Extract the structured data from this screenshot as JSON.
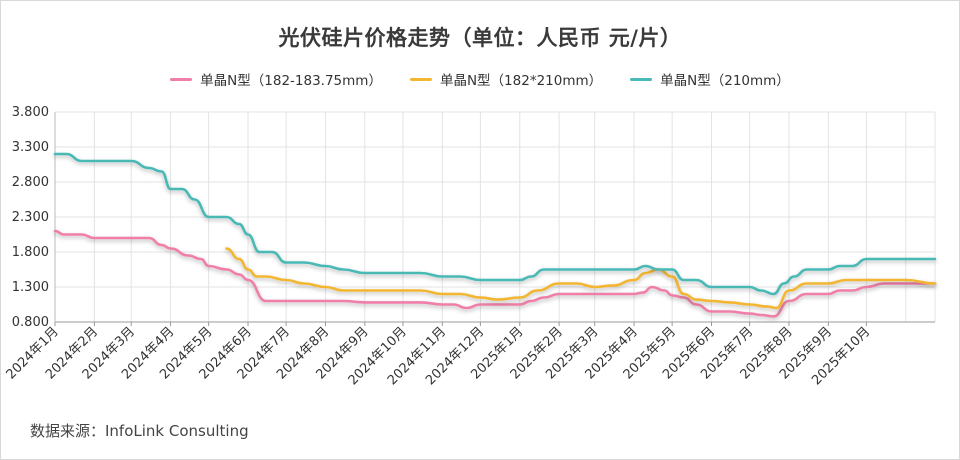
{
  "chart_data": {
    "type": "line",
    "title": "光伏硅片价格走势（单位：人民币 元/片）",
    "source": "数据来源：InfoLink Consulting",
    "ylim": [
      0.8,
      3.8
    ],
    "yticks": [
      "0.800",
      "1.300",
      "1.800",
      "2.300",
      "2.800",
      "3.300",
      "3.800"
    ],
    "ytick_values": [
      0.8,
      1.3,
      1.8,
      2.3,
      2.8,
      3.3,
      3.8
    ],
    "x_start": "2024-01-01",
    "x_end": "2025-11-24",
    "month_ticks": [
      "2024年1月",
      "2024年2月",
      "2024年3月",
      "2024年4月",
      "2024年5月",
      "2024年6月",
      "2024年7月",
      "2024年8月",
      "2024年9月",
      "2024年10月",
      "2024年11月",
      "2024年12月",
      "2025年1月",
      "2025年2月",
      "2025年3月",
      "2025年4月",
      "2025年5月",
      "2025年6月",
      "2025年7月",
      "2025年8月",
      "2025年9月",
      "2025年10月"
    ],
    "series": [
      {
        "name": "单晶N型（182-183.75mm）",
        "color": "#ef7fa8",
        "x": [
          "2024-01-01",
          "2024-01-08",
          "2024-01-22",
          "2024-02-01",
          "2024-02-15",
          "2024-03-01",
          "2024-03-15",
          "2024-03-25",
          "2024-04-01",
          "2024-04-15",
          "2024-04-25",
          "2024-05-01",
          "2024-05-15",
          "2024-05-25",
          "2024-06-01",
          "2024-06-15",
          "2024-07-01",
          "2024-07-15",
          "2024-08-01",
          "2024-08-15",
          "2024-09-01",
          "2024-09-15",
          "2024-10-01",
          "2024-10-15",
          "2024-11-01",
          "2024-11-10",
          "2024-11-20",
          "2024-12-01",
          "2024-12-15",
          "2025-01-01",
          "2025-01-10",
          "2025-01-20",
          "2025-02-01",
          "2025-02-15",
          "2025-03-01",
          "2025-03-15",
          "2025-03-25",
          "2025-04-01",
          "2025-04-08",
          "2025-04-15",
          "2025-04-25",
          "2025-05-01",
          "2025-05-10",
          "2025-05-20",
          "2025-06-01",
          "2025-06-15",
          "2025-07-01",
          "2025-07-10",
          "2025-07-20",
          "2025-08-01",
          "2025-08-15",
          "2025-09-01",
          "2025-09-10",
          "2025-09-20",
          "2025-10-01",
          "2025-10-15",
          "2025-11-01",
          "2025-11-24"
        ],
        "values": [
          2.1,
          2.05,
          2.05,
          2.0,
          2.0,
          2.0,
          2.0,
          1.9,
          1.85,
          1.75,
          1.7,
          1.6,
          1.55,
          1.48,
          1.4,
          1.1,
          1.1,
          1.1,
          1.1,
          1.1,
          1.08,
          1.08,
          1.08,
          1.08,
          1.05,
          1.05,
          1.0,
          1.05,
          1.05,
          1.05,
          1.1,
          1.15,
          1.2,
          1.2,
          1.2,
          1.2,
          1.2,
          1.2,
          1.22,
          1.3,
          1.25,
          1.18,
          1.15,
          1.05,
          0.95,
          0.95,
          0.92,
          0.9,
          0.88,
          1.1,
          1.2,
          1.2,
          1.25,
          1.25,
          1.3,
          1.35,
          1.35,
          1.35
        ]
      },
      {
        "name": "单晶N型（182*210mm）",
        "color": "#f2b632",
        "x": [
          "2024-05-15",
          "2024-05-25",
          "2024-06-01",
          "2024-06-08",
          "2024-06-15",
          "2024-07-01",
          "2024-07-15",
          "2024-08-01",
          "2024-08-15",
          "2024-09-01",
          "2024-10-01",
          "2024-10-15",
          "2024-11-01",
          "2024-11-15",
          "2024-12-01",
          "2024-12-15",
          "2025-01-01",
          "2025-01-15",
          "2025-02-01",
          "2025-02-15",
          "2025-03-01",
          "2025-03-15",
          "2025-04-01",
          "2025-04-10",
          "2025-04-20",
          "2025-05-01",
          "2025-05-10",
          "2025-05-20",
          "2025-06-01",
          "2025-06-15",
          "2025-07-01",
          "2025-07-15",
          "2025-07-22",
          "2025-08-01",
          "2025-08-15",
          "2025-09-01",
          "2025-09-15",
          "2025-10-01",
          "2025-10-15",
          "2025-11-01",
          "2025-11-24"
        ],
        "values": [
          1.85,
          1.7,
          1.55,
          1.45,
          1.45,
          1.4,
          1.35,
          1.3,
          1.25,
          1.25,
          1.25,
          1.25,
          1.2,
          1.2,
          1.15,
          1.12,
          1.15,
          1.25,
          1.35,
          1.35,
          1.3,
          1.32,
          1.4,
          1.5,
          1.55,
          1.45,
          1.2,
          1.12,
          1.1,
          1.08,
          1.05,
          1.02,
          1.0,
          1.25,
          1.35,
          1.35,
          1.4,
          1.4,
          1.4,
          1.4,
          1.35
        ]
      },
      {
        "name": "单晶N型（210mm）",
        "color": "#49b9b6",
        "x": [
          "2024-01-01",
          "2024-01-10",
          "2024-01-22",
          "2024-02-01",
          "2024-02-15",
          "2024-03-01",
          "2024-03-15",
          "2024-03-25",
          "2024-04-01",
          "2024-04-10",
          "2024-04-20",
          "2024-05-01",
          "2024-05-15",
          "2024-05-25",
          "2024-06-01",
          "2024-06-10",
          "2024-06-20",
          "2024-07-01",
          "2024-07-15",
          "2024-08-01",
          "2024-08-15",
          "2024-09-01",
          "2024-10-01",
          "2024-10-15",
          "2024-11-01",
          "2024-11-15",
          "2024-12-01",
          "2024-12-15",
          "2025-01-01",
          "2025-01-10",
          "2025-01-20",
          "2025-02-01",
          "2025-03-01",
          "2025-03-15",
          "2025-04-01",
          "2025-04-10",
          "2025-04-20",
          "2025-05-01",
          "2025-05-10",
          "2025-05-20",
          "2025-06-01",
          "2025-06-15",
          "2025-07-01",
          "2025-07-10",
          "2025-07-20",
          "2025-07-28",
          "2025-08-05",
          "2025-08-15",
          "2025-09-01",
          "2025-09-10",
          "2025-09-20",
          "2025-10-01",
          "2025-10-15",
          "2025-11-01",
          "2025-11-24"
        ],
        "values": [
          3.2,
          3.2,
          3.1,
          3.1,
          3.1,
          3.1,
          3.0,
          2.95,
          2.7,
          2.7,
          2.55,
          2.3,
          2.3,
          2.2,
          2.05,
          1.8,
          1.8,
          1.65,
          1.65,
          1.6,
          1.55,
          1.5,
          1.5,
          1.5,
          1.45,
          1.45,
          1.4,
          1.4,
          1.4,
          1.45,
          1.55,
          1.55,
          1.55,
          1.55,
          1.55,
          1.6,
          1.55,
          1.55,
          1.4,
          1.4,
          1.3,
          1.3,
          1.3,
          1.25,
          1.2,
          1.35,
          1.45,
          1.55,
          1.55,
          1.6,
          1.6,
          1.7,
          1.7,
          1.7,
          1.7
        ]
      }
    ]
  }
}
